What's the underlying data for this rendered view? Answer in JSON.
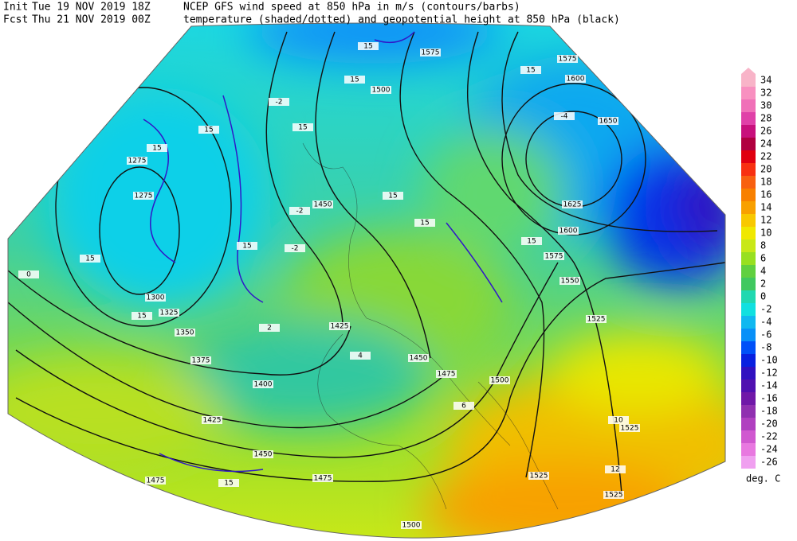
{
  "header": {
    "line1": {
      "label": "Init",
      "time": "Tue 19 NOV 2019 18Z",
      "description": "NCEP GFS wind speed at 850 hPa in m/s (contours/barbs)"
    },
    "line2": {
      "label": "Fcst",
      "time": "Thu 21 NOV 2019 00Z",
      "description": "temperature (shaded/dotted) and geopotential height at 850 hPa (black)"
    }
  },
  "colorbar": {
    "ticks": [
      34,
      32,
      30,
      28,
      26,
      24,
      22,
      20,
      18,
      16,
      14,
      12,
      10,
      8,
      6,
      4,
      2,
      0,
      -2,
      -4,
      -6,
      -8,
      -10,
      -12,
      -14,
      -16,
      -18,
      -20,
      -22,
      -24,
      -26
    ],
    "colors": [
      "#f8b4c8",
      "#f890c0",
      "#f070b8",
      "#e040a8",
      "#c8107c",
      "#b00040",
      "#e00010",
      "#f83010",
      "#f86010",
      "#f88000",
      "#f8a000",
      "#f8c800",
      "#f0e800",
      "#c8e818",
      "#98e020",
      "#60d040",
      "#40c860",
      "#20d8b0",
      "#10e0e0",
      "#10b8f0",
      "#0890f8",
      "#0050f8",
      "#0820e0",
      "#3010c0",
      "#5010b0",
      "#7018a8",
      "#9030b0",
      "#b040c0",
      "#d058d0",
      "#e878e0",
      "#f0a0f0"
    ],
    "unit": "deg. C"
  },
  "height_labels": [
    1275,
    1275,
    1300,
    1325,
    1350,
    1375,
    1400,
    1425,
    1450,
    1475,
    1475,
    1500,
    1525,
    1525,
    1525,
    1525,
    1550,
    1575,
    1600,
    1625,
    1650,
    1600,
    1575,
    1575,
    1500,
    1450,
    1425,
    1450,
    1475,
    1500
  ],
  "wind_labels": [
    15,
    15,
    15,
    15,
    15,
    15,
    15,
    15,
    15,
    15,
    15,
    15,
    15
  ],
  "temperature_labels": [
    -2,
    -2,
    -2,
    -4,
    0,
    2,
    4,
    6,
    10,
    12
  ]
}
